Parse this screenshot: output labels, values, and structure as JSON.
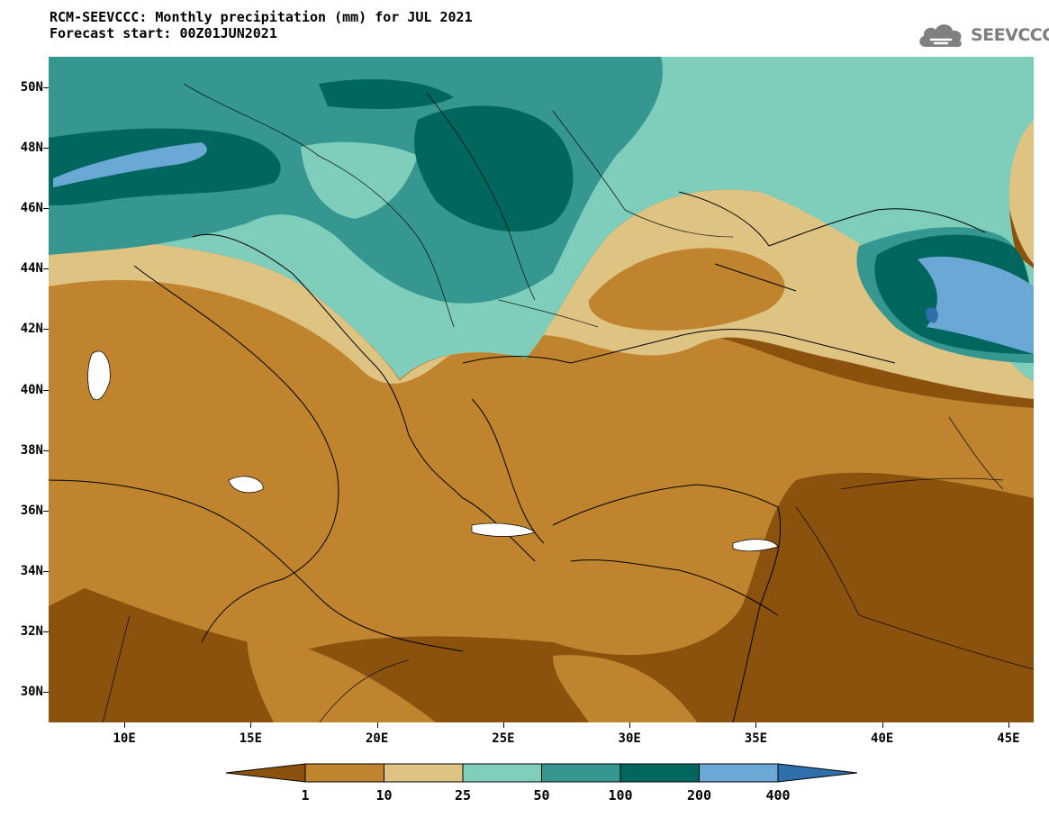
{
  "header": {
    "title_line1": "RCM-SEEVCCC: Monthly precipitation (mm) for JUL 2021",
    "title_line2": "Forecast start: 00Z01JUN2021"
  },
  "logo": {
    "text": "SEEVCCC",
    "icon": "cloud-logo-icon",
    "color": "#7d7d7d"
  },
  "map": {
    "projection": "lat-lon",
    "lon_range": [
      7,
      46
    ],
    "lat_range": [
      29,
      51
    ],
    "lat_ticks": [
      {
        "value": 50,
        "label": "50N"
      },
      {
        "value": 48,
        "label": "48N"
      },
      {
        "value": 46,
        "label": "46N"
      },
      {
        "value": 44,
        "label": "44N"
      },
      {
        "value": 42,
        "label": "42N"
      },
      {
        "value": 40,
        "label": "40N"
      },
      {
        "value": 38,
        "label": "38N"
      },
      {
        "value": 36,
        "label": "36N"
      },
      {
        "value": 34,
        "label": "34N"
      },
      {
        "value": 32,
        "label": "32N"
      },
      {
        "value": 30,
        "label": "30N"
      }
    ],
    "lon_ticks": [
      {
        "value": 10,
        "label": "10E"
      },
      {
        "value": 15,
        "label": "15E"
      },
      {
        "value": 20,
        "label": "20E"
      },
      {
        "value": 25,
        "label": "25E"
      },
      {
        "value": 30,
        "label": "30E"
      },
      {
        "value": 35,
        "label": "35E"
      },
      {
        "value": 40,
        "label": "40E"
      },
      {
        "value": 45,
        "label": "45E"
      }
    ]
  },
  "colorbar": {
    "colors": [
      "#8b520e",
      "#c0842f",
      "#dfc383",
      "#7fcdbb",
      "#35978f",
      "#01665e",
      "#6aa9d6",
      "#2f6fab"
    ],
    "labels": [
      "1",
      "10",
      "25",
      "50",
      "100",
      "200",
      "400"
    ]
  }
}
